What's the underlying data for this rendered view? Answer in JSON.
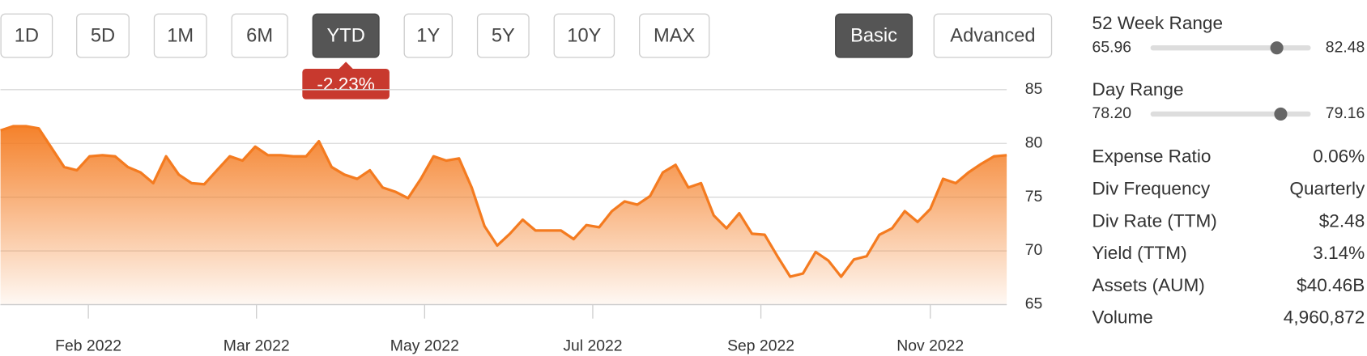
{
  "range_buttons": {
    "items": [
      "1D",
      "5D",
      "1M",
      "6M",
      "YTD",
      "1Y",
      "5Y",
      "10Y",
      "MAX"
    ],
    "selected": 4
  },
  "view_buttons": {
    "items": [
      "Basic",
      "Advanced"
    ],
    "selected": 0
  },
  "change_badge": "-2.23%",
  "chart_data": {
    "type": "area",
    "color": "#f47b20",
    "grid": true,
    "values": [
      81.2,
      81.6,
      81.6,
      81.4,
      79.6,
      77.8,
      77.5,
      78.8,
      78.9,
      78.8,
      77.8,
      77.3,
      76.3,
      78.8,
      77.1,
      76.3,
      76.2,
      77.5,
      78.8,
      78.4,
      79.7,
      78.9,
      78.9,
      78.8,
      78.8,
      80.2,
      77.8,
      77.1,
      76.7,
      77.5,
      75.9,
      75.5,
      74.9,
      76.7,
      78.8,
      78.4,
      78.6,
      75.9,
      72.3,
      70.5,
      71.6,
      72.9,
      71.9,
      71.9,
      71.9,
      71.1,
      72.4,
      72.2,
      73.7,
      74.6,
      74.3,
      75.1,
      77.3,
      78.0,
      75.9,
      76.3,
      73.3,
      72.1,
      73.5,
      71.6,
      71.5,
      69.5,
      67.6,
      67.9,
      69.9,
      69.1,
      67.6,
      69.2,
      69.5,
      71.5,
      72.1,
      73.7,
      72.7,
      73.9,
      76.7,
      76.3,
      77.3,
      78.1,
      78.8,
      78.9
    ],
    "xlim": [
      0,
      79
    ],
    "xticks": [
      {
        "value": 6.9,
        "label": "Feb 2022"
      },
      {
        "value": 20.1,
        "label": "Mar 2022"
      },
      {
        "value": 33.3,
        "label": "May 2022"
      },
      {
        "value": 46.5,
        "label": "Jul 2022"
      },
      {
        "value": 59.7,
        "label": "Sep 2022"
      },
      {
        "value": 73.0,
        "label": "Nov 2022"
      }
    ],
    "ylim": [
      65,
      85
    ],
    "yticks": [
      65,
      70,
      75,
      80,
      85
    ]
  },
  "ranges": [
    {
      "label": "52 Week Range",
      "low": 65.96,
      "high": 82.48,
      "marker": 78.98
    },
    {
      "label": "Day Range",
      "low": {
        "value": 78.2,
        "label": "78.20"
      },
      "high": 79.16,
      "marker": 78.98
    }
  ],
  "stats": [
    {
      "label": "Expense Ratio",
      "value": "0.06%"
    },
    {
      "label": "Div Frequency",
      "value": "Quarterly"
    },
    {
      "label": "Div Rate (TTM)",
      "value": "$2.48"
    },
    {
      "label": "Yield (TTM)",
      "value": "3.14%"
    },
    {
      "label": "Assets (AUM)",
      "value": "$40.46B"
    },
    {
      "label": "Volume",
      "value": "4,960,872"
    }
  ]
}
